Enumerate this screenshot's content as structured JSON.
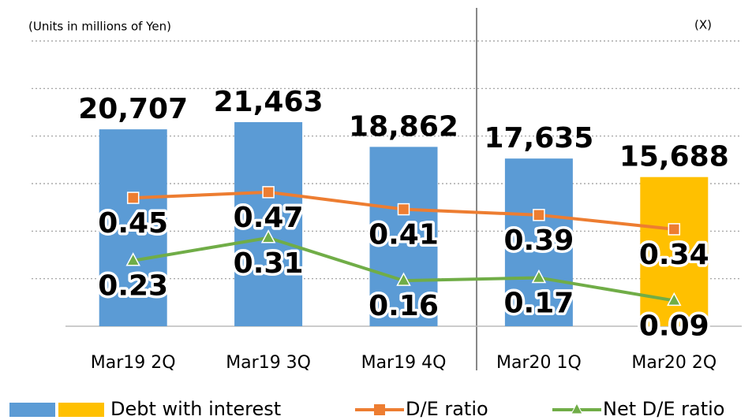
{
  "chart_data": {
    "type": "bar",
    "units_label": "(Units in millions of Yen)",
    "y2_units_label": "(X)",
    "categories": [
      "Mar19 2Q",
      "Mar19 3Q",
      "Mar19 4Q",
      "Mar20 1Q",
      "Mar20 2Q"
    ],
    "series": [
      {
        "name": "Debt with interest",
        "type": "bar",
        "colors": [
          "#5b9bd5",
          "#5b9bd5",
          "#5b9bd5",
          "#5b9bd5",
          "#ffc000"
        ],
        "values": [
          20707,
          21463,
          18862,
          17635,
          15688
        ],
        "value_labels": [
          "20,707",
          "21,463",
          "18,862",
          "17,635",
          "15,688"
        ]
      },
      {
        "name": "D/E ratio",
        "type": "line",
        "color": "#ed7d31",
        "marker": "square",
        "axis": "y2",
        "values": [
          0.45,
          0.47,
          0.41,
          0.39,
          0.34
        ]
      },
      {
        "name": "Net D/E ratio",
        "type": "line",
        "color": "#70ad47",
        "marker": "triangle",
        "axis": "y2",
        "values": [
          0.23,
          0.31,
          0.16,
          0.17,
          0.09
        ]
      }
    ],
    "ylim": [
      0,
      30000
    ],
    "yticks": [
      0,
      5000,
      10000,
      15000,
      20000,
      25000,
      30000
    ],
    "y2lim": [
      0,
      1
    ],
    "grid": true
  }
}
